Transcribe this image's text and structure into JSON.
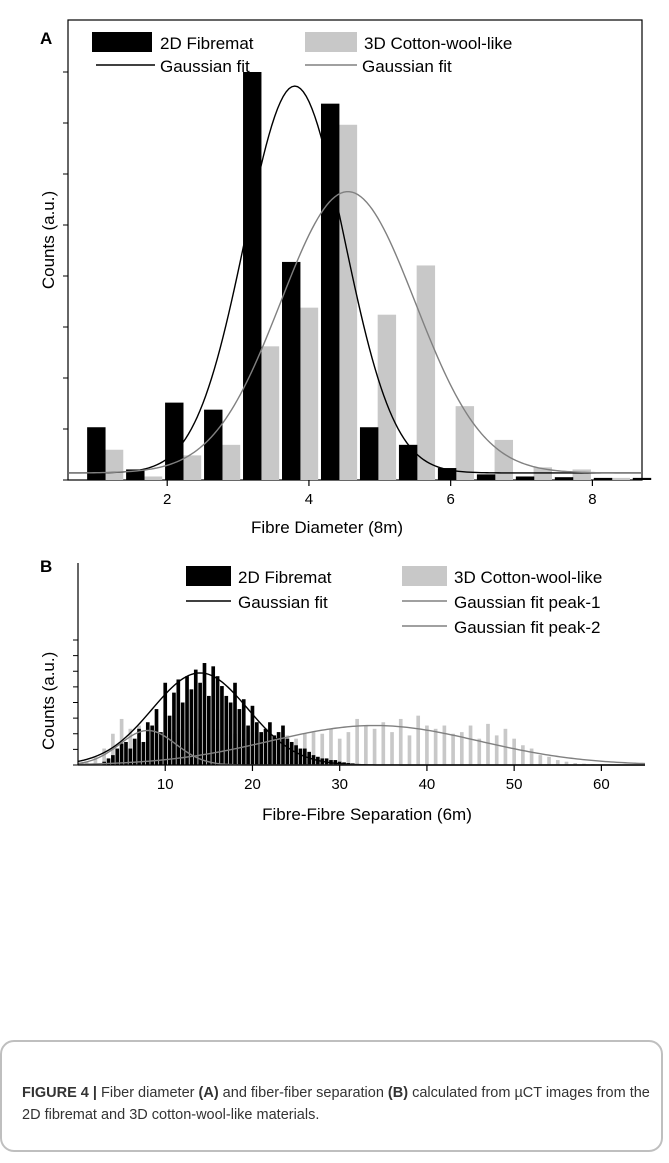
{
  "panel_a": {
    "letter": "A",
    "legend": [
      {
        "label": "2D Fibremat",
        "kind": "bar",
        "color": "#000000"
      },
      {
        "label": "3D Cotton-wool-like",
        "kind": "bar",
        "color": "#c8c8c8"
      },
      {
        "label": "Gaussian fit",
        "kind": "line",
        "color": "#000000"
      },
      {
        "label": "Gaussian fit",
        "kind": "line",
        "color": "#808080"
      }
    ]
  },
  "panel_b": {
    "letter": "B",
    "legend": [
      {
        "label": "2D Fibremat",
        "kind": "bar",
        "color": "#000000"
      },
      {
        "label": "3D Cotton-wool-like",
        "kind": "bar",
        "color": "#c8c8c8"
      },
      {
        "label": "Gaussian fit",
        "kind": "line",
        "color": "#000000"
      },
      {
        "label": "Gaussian fit peak-1",
        "kind": "line",
        "color": "#808080"
      },
      {
        "label": "Gaussian fit  peak-2",
        "kind": "line",
        "color": "#808080"
      }
    ]
  },
  "caption": {
    "label": "FIGURE 4 |",
    "t1": " Fiber diameter ",
    "a": "(A)",
    "t2": " and fiber-fiber separation ",
    "b": "(B)",
    "t3": " calculated from µCT images from the 2D fibremat and 3D cotton-wool-like materials."
  },
  "chart_data": [
    {
      "type": "bar",
      "xlabel": "Fibre Diameter (8m)",
      "ylabel": "Counts (a.u.)",
      "xlim": [
        0.6,
        8.7
      ],
      "ylim": [
        0,
        58
      ],
      "xticks": [
        2,
        4,
        6,
        8
      ],
      "grid": false,
      "legend_position": "top",
      "series": [
        {
          "name": "2D Fibremat",
          "color": "#000000",
          "x": [
            1.0,
            1.55,
            2.1,
            2.65,
            3.2,
            3.75,
            4.3,
            4.85,
            5.4,
            5.95,
            6.5,
            7.05,
            7.6,
            8.15,
            8.7
          ],
          "values": [
            7.5,
            1.5,
            11,
            10,
            58,
            31,
            53.5,
            7.5,
            5,
            1.7,
            0.8,
            0.5,
            0.4,
            0.3,
            0.3
          ]
        },
        {
          "name": "3D Cotton-wool-like",
          "color": "#c8c8c8",
          "x": [
            1.25,
            1.8,
            2.35,
            2.9,
            3.45,
            4.0,
            4.55,
            5.1,
            5.65,
            6.2,
            6.75,
            7.3,
            7.85,
            8.4
          ],
          "values": [
            4.3,
            0.5,
            3.5,
            5,
            19,
            24.5,
            50.5,
            23.5,
            30.5,
            10.5,
            5.7,
            1.8,
            1.5,
            0.3
          ]
        },
        {
          "name": "Gaussian fit",
          "kind": "gaussian",
          "color": "#000000",
          "offset": 1,
          "amplitude": 55,
          "mean": 3.8,
          "sd": 0.7
        },
        {
          "name": "Gaussian fit",
          "kind": "gaussian",
          "color": "#808080",
          "offset": 1,
          "amplitude": 40,
          "mean": 4.55,
          "sd": 0.95
        }
      ]
    },
    {
      "type": "bar",
      "xlabel": "Fibre-Fibre Separation (6m)",
      "ylabel": "Counts (a.u.)",
      "xlim": [
        0,
        65
      ],
      "ylim": [
        0,
        38
      ],
      "xticks": [
        10,
        20,
        30,
        40,
        50,
        60
      ],
      "grid": false,
      "legend_position": "top",
      "series": [
        {
          "name": "2D Fibremat",
          "color": "#000000",
          "x": [
            3,
            3.5,
            4,
            4.5,
            5,
            5.5,
            6,
            6.5,
            7,
            7.5,
            8,
            8.5,
            9,
            9.5,
            10,
            10.5,
            11,
            11.5,
            12,
            12.5,
            13,
            13.5,
            14,
            14.5,
            15,
            15.5,
            16,
            16.5,
            17,
            17.5,
            18,
            18.5,
            19,
            19.5,
            20,
            20.5,
            21,
            21.5,
            22,
            22.5,
            23,
            23.5,
            24,
            24.5,
            25,
            25.5,
            26,
            26.5,
            27,
            27.5,
            28,
            28.5,
            29,
            29.5,
            30,
            30.5,
            31,
            31.5,
            32
          ],
          "values": [
            1,
            2,
            3,
            5,
            6.5,
            7,
            5,
            8,
            11,
            7,
            13,
            12,
            17,
            10,
            25,
            15,
            22,
            26,
            19,
            27,
            23,
            29,
            25,
            31,
            21,
            30,
            27,
            24,
            21,
            19,
            25,
            17,
            20,
            12,
            18,
            13,
            10,
            11,
            13,
            9,
            10,
            12,
            8,
            7,
            6,
            5,
            5,
            4,
            3,
            2.5,
            2,
            2,
            1.5,
            1.5,
            1,
            0.8,
            0.6,
            0.5,
            0.3
          ]
        },
        {
          "name": "3D Cotton-wool-like",
          "color": "#c8c8c8",
          "x": [
            1,
            2,
            3,
            4,
            5,
            6,
            7,
            8,
            9,
            10,
            11,
            12,
            13,
            14,
            15,
            16,
            17,
            18,
            19,
            20,
            21,
            22,
            23,
            24,
            25,
            26,
            27,
            28,
            29,
            30,
            31,
            32,
            33,
            34,
            35,
            36,
            37,
            38,
            39,
            40,
            41,
            42,
            43,
            44,
            45,
            46,
            47,
            48,
            49,
            50,
            51,
            52,
            53,
            54,
            55,
            56,
            57,
            58,
            59,
            60,
            61,
            62,
            63
          ],
          "values": [
            1,
            2.5,
            5,
            9.5,
            14,
            11,
            12,
            9,
            12,
            16,
            10,
            11,
            6.5,
            11,
            8,
            11,
            9,
            9.5,
            8,
            10,
            9,
            8,
            10,
            9,
            8,
            9.5,
            10,
            9.5,
            11,
            8,
            10,
            14,
            12,
            11,
            13,
            10,
            14,
            9,
            15,
            12,
            11,
            12,
            9.5,
            10,
            12,
            8,
            12.5,
            9,
            11,
            8,
            6,
            5,
            3,
            2.5,
            1.5,
            1,
            0.6,
            0.4,
            0.3,
            0.2,
            0.2,
            0.2,
            0.2
          ]
        },
        {
          "name": "Gaussian fit",
          "kind": "gaussian",
          "color": "#000000",
          "offset": 0,
          "amplitude": 28,
          "mean": 14,
          "sd": 5.5
        },
        {
          "name": "Gaussian fit peak-1",
          "kind": "gaussian",
          "color": "#808080",
          "offset": 0,
          "amplitude": 10.5,
          "mean": 8,
          "sd": 3.2
        },
        {
          "name": "Gaussian fit  peak-2",
          "kind": "gaussian",
          "color": "#808080",
          "offset": 0,
          "amplitude": 12,
          "mean": 34,
          "sd": 12
        }
      ]
    }
  ]
}
